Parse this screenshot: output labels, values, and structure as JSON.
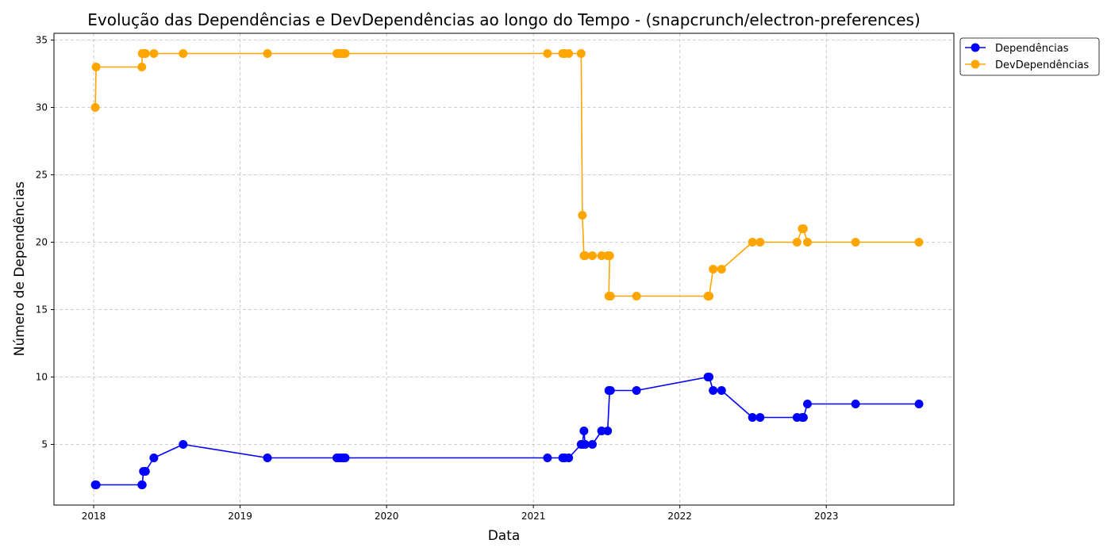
{
  "chart_data": {
    "type": "line",
    "title": "Evolução das Dependências e DevDependências ao longo do Tempo - (snapcrunch/electron-preferences)",
    "xlabel": "Data",
    "ylabel": "Número de Dependências",
    "xlim": [
      "2017-09-24",
      "2023-11-15"
    ],
    "ylim": [
      0.5,
      35.5
    ],
    "x_ticks": [
      "2018-01-01",
      "2019-01-01",
      "2020-01-01",
      "2021-01-01",
      "2022-01-01",
      "2023-01-01"
    ],
    "x_tick_labels": [
      "2018",
      "2019",
      "2020",
      "2021",
      "2022",
      "2023"
    ],
    "y_ticks": [
      5,
      10,
      15,
      20,
      25,
      30,
      35
    ],
    "grid": true,
    "legend_position": "upper right, outside plot area",
    "series": [
      {
        "name": "Dependências",
        "color": "#0000ff",
        "x": [
          "2018-01-05",
          "2018-01-07",
          "2018-05-01",
          "2018-05-02",
          "2018-05-05",
          "2018-05-10",
          "2018-05-31",
          "2018-08-12",
          "2019-03-10",
          "2019-08-30",
          "2019-09-05",
          "2019-09-10",
          "2019-09-15",
          "2019-09-20",
          "2021-02-05",
          "2021-03-15",
          "2021-03-20",
          "2021-03-30",
          "2021-04-30",
          "2021-05-03",
          "2021-05-07",
          "2021-05-10",
          "2021-05-28",
          "2021-06-20",
          "2021-07-05",
          "2021-07-10",
          "2021-07-08",
          "2021-07-12",
          "2021-09-15",
          "2022-03-12",
          "2022-03-15",
          "2022-03-25",
          "2022-04-15",
          "2022-07-01",
          "2022-07-20",
          "2022-10-20",
          "2022-11-02",
          "2022-11-05",
          "2022-11-15",
          "2023-03-15",
          "2023-08-20"
        ],
        "values": [
          2,
          2,
          2,
          2,
          3,
          3,
          4,
          5,
          4,
          4,
          4,
          4,
          4,
          4,
          4,
          4,
          4,
          4,
          5,
          5,
          6,
          5,
          5,
          6,
          6,
          9,
          9,
          9,
          9,
          10,
          10,
          9,
          9,
          7,
          7,
          7,
          7,
          7,
          8,
          8,
          8
        ]
      },
      {
        "name": "DevDependências",
        "color": "#ffa500",
        "x": [
          "2018-01-05",
          "2018-01-07",
          "2018-05-01",
          "2018-05-02",
          "2018-05-05",
          "2018-05-10",
          "2018-05-31",
          "2018-08-12",
          "2019-03-10",
          "2019-08-30",
          "2019-09-05",
          "2019-09-10",
          "2019-09-15",
          "2019-09-20",
          "2021-02-05",
          "2021-03-15",
          "2021-03-20",
          "2021-03-30",
          "2021-04-30",
          "2021-05-03",
          "2021-05-07",
          "2021-05-10",
          "2021-05-28",
          "2021-06-20",
          "2021-07-05",
          "2021-07-10",
          "2021-07-08",
          "2021-07-12",
          "2021-09-15",
          "2022-03-12",
          "2022-03-15",
          "2022-03-25",
          "2022-04-15",
          "2022-07-01",
          "2022-07-20",
          "2022-10-20",
          "2022-11-02",
          "2022-11-05",
          "2022-11-15",
          "2023-03-15",
          "2023-08-20"
        ],
        "values": [
          30,
          33,
          33,
          34,
          34,
          34,
          34,
          34,
          34,
          34,
          34,
          34,
          34,
          34,
          34,
          34,
          34,
          34,
          34,
          22,
          19,
          19,
          19,
          19,
          19,
          19,
          16,
          16,
          16,
          16,
          16,
          18,
          18,
          20,
          20,
          20,
          21,
          21,
          20,
          20,
          20
        ]
      }
    ]
  }
}
